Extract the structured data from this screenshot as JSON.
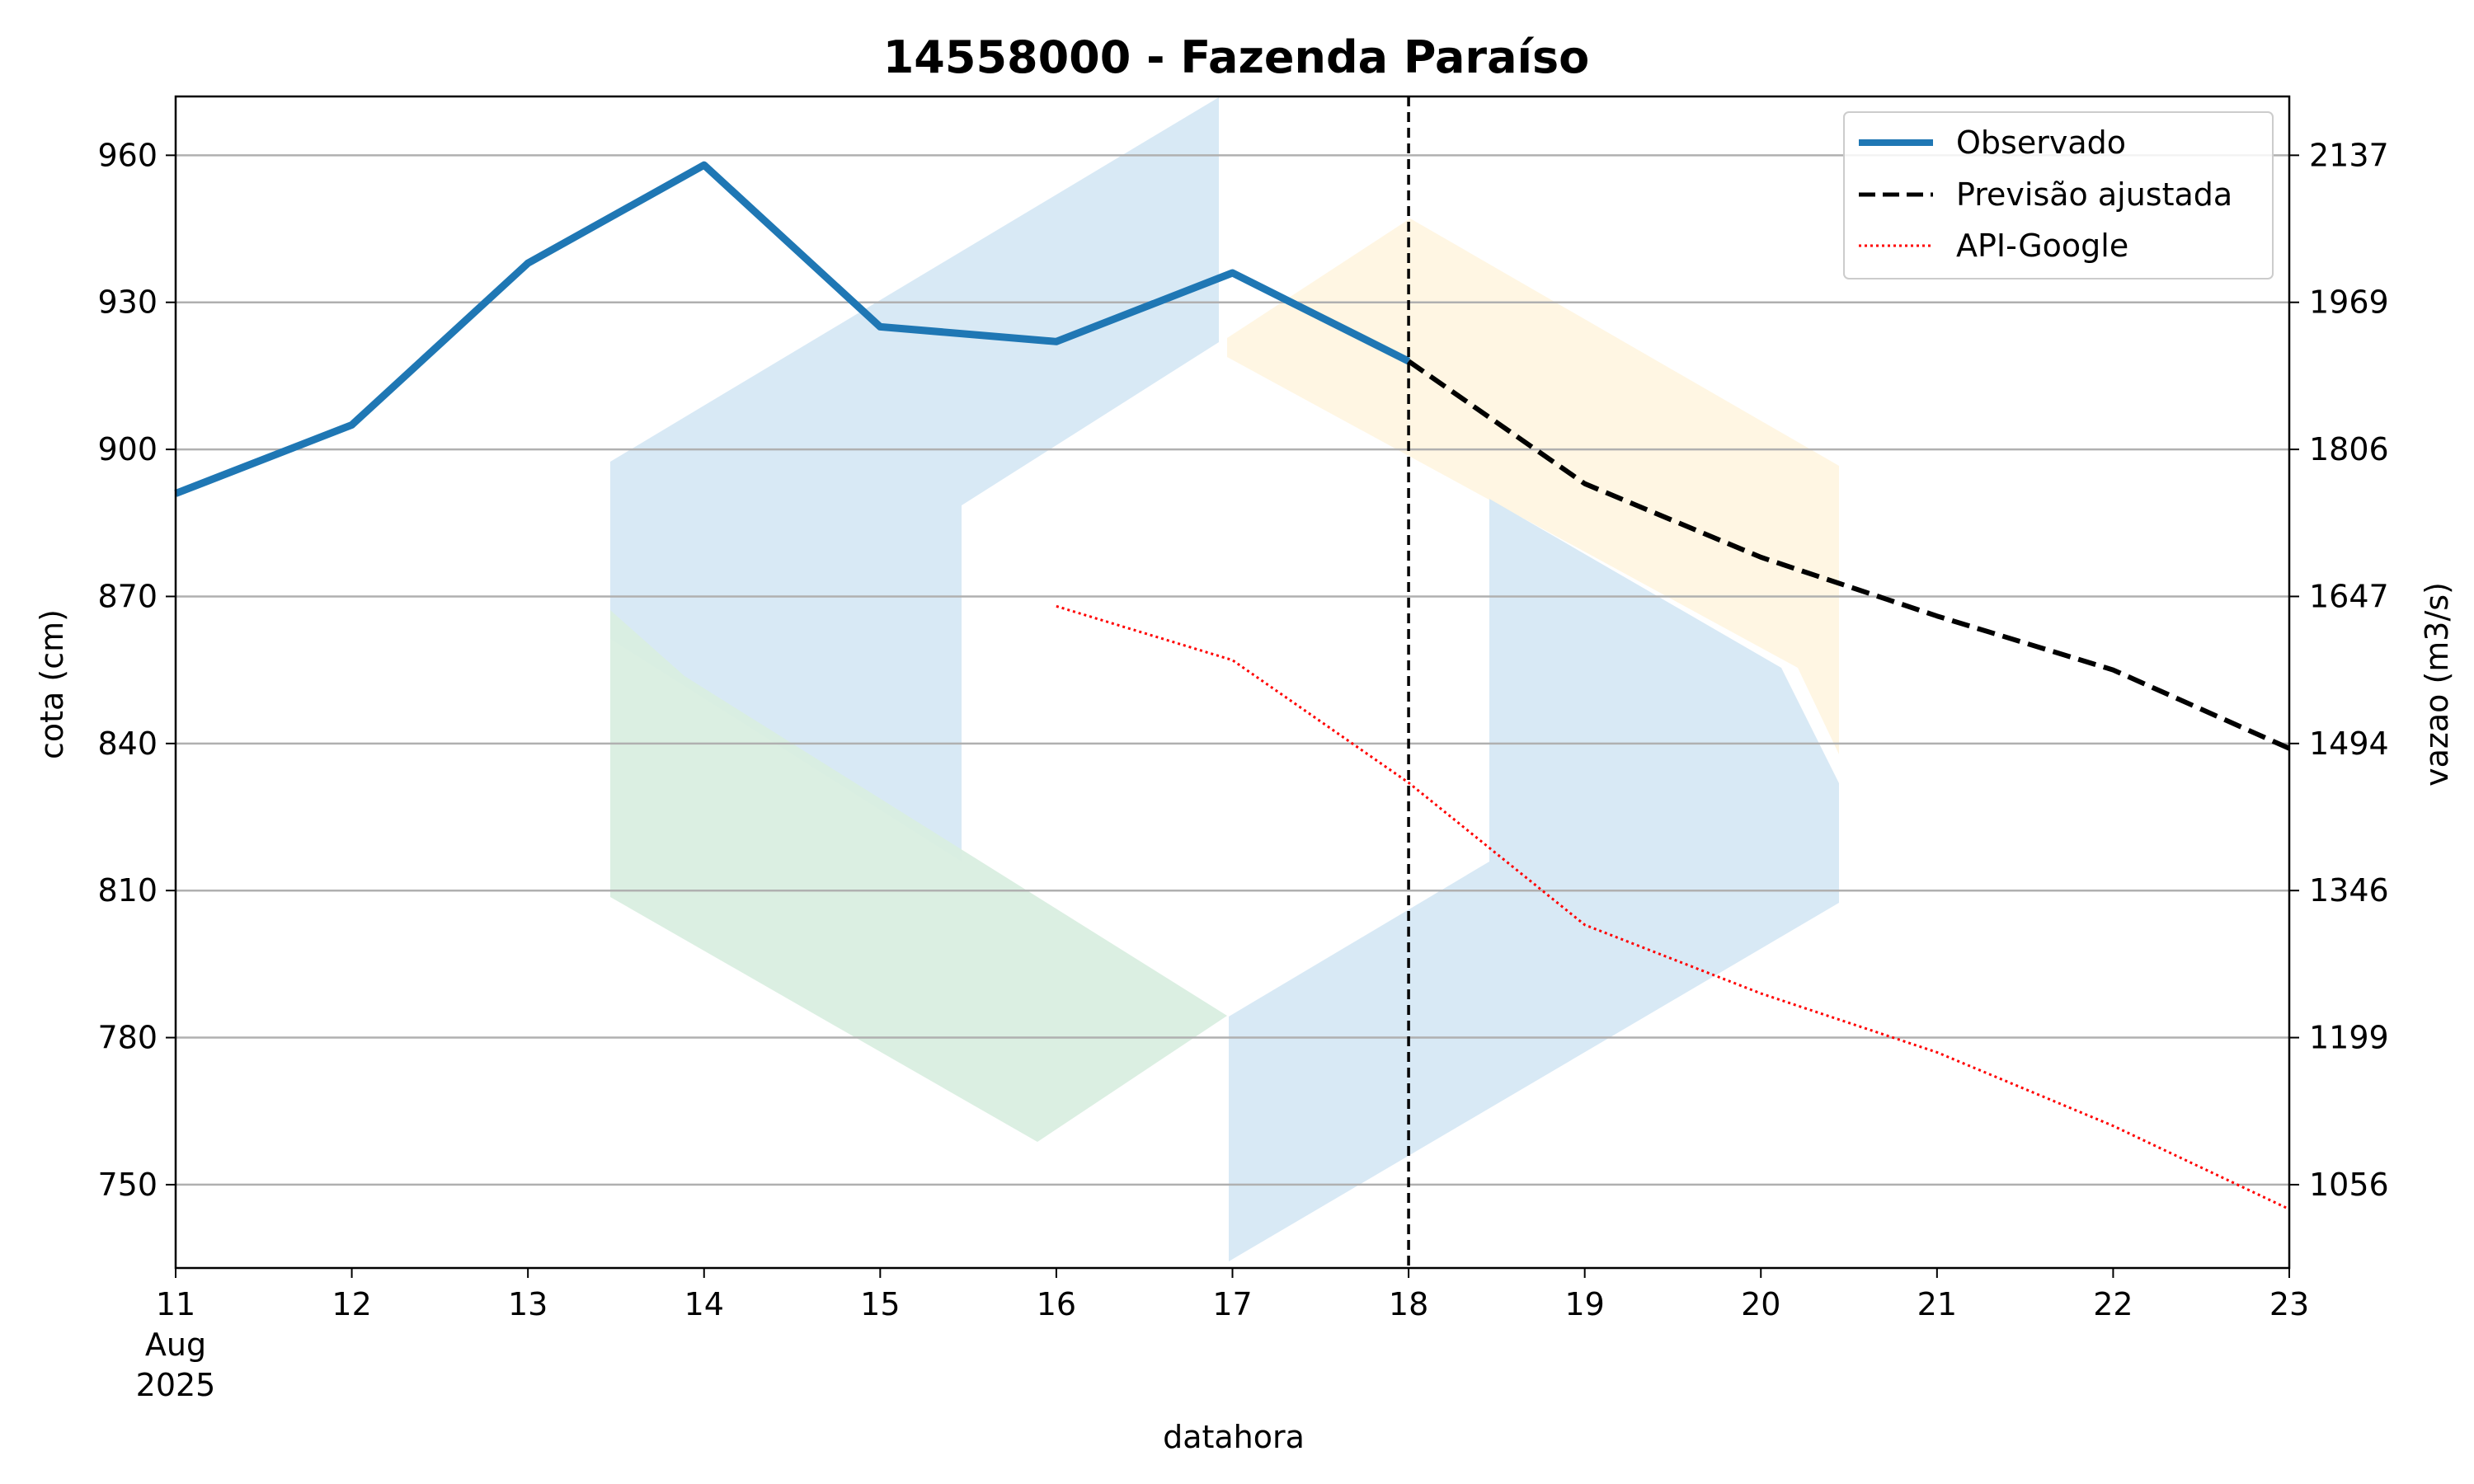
{
  "chart_data": {
    "type": "line",
    "title": "14558000 - Fazenda Paraíso",
    "xlabel": "datahora",
    "ylabel": "cota (cm)",
    "ylabel_right": "vazao (m3/s)",
    "x_ticks": [
      {
        "day": 11,
        "label": "11",
        "sublabels": [
          "Aug",
          "2025"
        ]
      },
      {
        "day": 12,
        "label": "12"
      },
      {
        "day": 13,
        "label": "13"
      },
      {
        "day": 14,
        "label": "14"
      },
      {
        "day": 15,
        "label": "15"
      },
      {
        "day": 16,
        "label": "16"
      },
      {
        "day": 17,
        "label": "17"
      },
      {
        "day": 18,
        "label": "18"
      },
      {
        "day": 19,
        "label": "19"
      },
      {
        "day": 20,
        "label": "20"
      },
      {
        "day": 21,
        "label": "21"
      },
      {
        "day": 22,
        "label": "22"
      },
      {
        "day": 23,
        "label": "23"
      }
    ],
    "xlim": [
      11,
      23
    ],
    "ylim": [
      733,
      972
    ],
    "y_ticks": [
      750,
      780,
      810,
      840,
      870,
      900,
      930,
      960
    ],
    "y_ticks_right": [
      {
        "cota": 750,
        "label": "1056"
      },
      {
        "cota": 780,
        "label": "1199"
      },
      {
        "cota": 810,
        "label": "1346"
      },
      {
        "cota": 840,
        "label": "1494"
      },
      {
        "cota": 870,
        "label": "1647"
      },
      {
        "cota": 900,
        "label": "1806"
      },
      {
        "cota": 930,
        "label": "1969"
      },
      {
        "cota": 960,
        "label": "2137"
      }
    ],
    "grid": "horizontal",
    "vline_x": 18,
    "legend_position": "top-right",
    "series": [
      {
        "name": "Observado",
        "style": "solid",
        "color": "#1f77b4",
        "x": [
          11,
          12,
          13,
          14,
          15,
          16,
          17,
          18
        ],
        "y": [
          891,
          905,
          938,
          958,
          925,
          922,
          936,
          918
        ]
      },
      {
        "name": "Previsão ajustada",
        "style": "dashed",
        "color": "#000000",
        "x": [
          18,
          19,
          20,
          21,
          22,
          23
        ],
        "y": [
          918,
          893,
          878,
          866,
          855,
          839
        ]
      },
      {
        "name": "API-Google",
        "style": "dotted",
        "color": "#ff0000",
        "x": [
          16,
          17,
          18,
          19,
          20,
          21,
          22,
          23
        ],
        "y": [
          868,
          857,
          832,
          803,
          789,
          777,
          762,
          745
        ]
      }
    ]
  }
}
